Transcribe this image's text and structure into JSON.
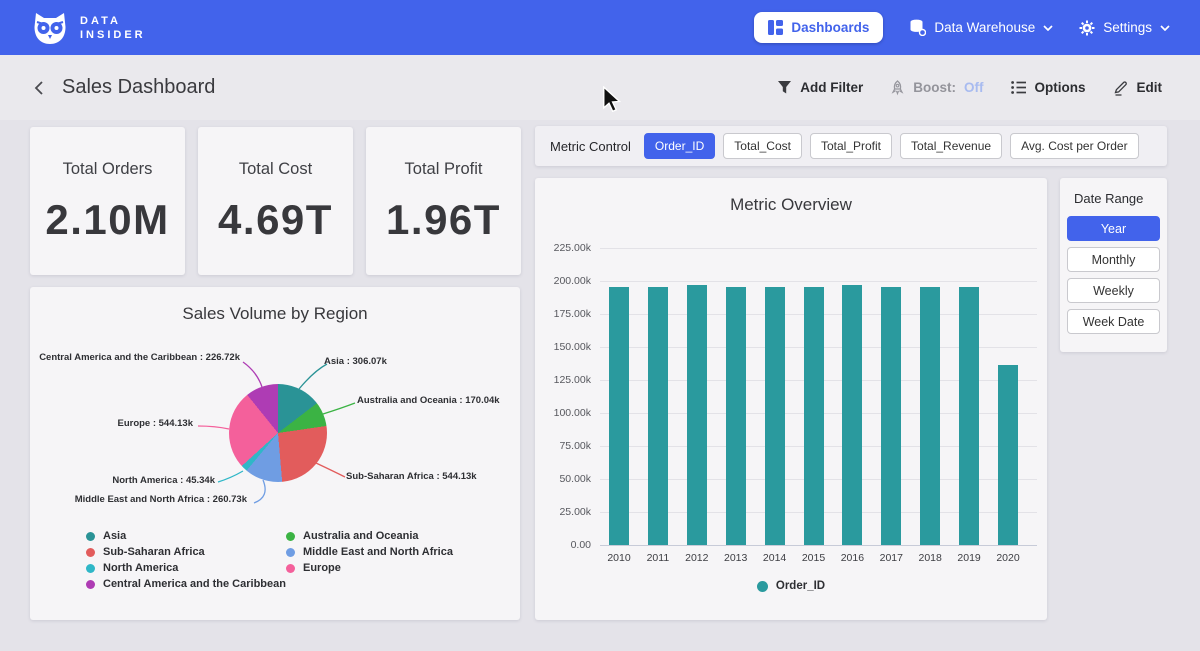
{
  "brand": {
    "line1": "DATA",
    "line2": "INSIDER"
  },
  "nav": {
    "dashboards": "Dashboards",
    "data_warehouse": "Data Warehouse",
    "settings": "Settings"
  },
  "header": {
    "title": "Sales Dashboard",
    "add_filter": "Add Filter",
    "boost_label": "Boost:",
    "boost_value": "Off",
    "options": "Options",
    "edit": "Edit"
  },
  "kpis": [
    {
      "label": "Total Orders",
      "value": "2.10M"
    },
    {
      "label": "Total Cost",
      "value": "4.69T"
    },
    {
      "label": "Total Profit",
      "value": "1.96T"
    }
  ],
  "metric_control": {
    "label": "Metric Control",
    "options": [
      {
        "label": "Order_ID",
        "selected": true
      },
      {
        "label": "Total_Cost",
        "selected": false
      },
      {
        "label": "Total_Profit",
        "selected": false
      },
      {
        "label": "Total_Revenue",
        "selected": false
      },
      {
        "label": "Avg. Cost per Order",
        "selected": false
      }
    ]
  },
  "date_range": {
    "label": "Date Range",
    "options": [
      {
        "label": "Year",
        "selected": true
      },
      {
        "label": "Monthly",
        "selected": false
      },
      {
        "label": "Weekly",
        "selected": false
      },
      {
        "label": "Week Date",
        "selected": false
      }
    ]
  },
  "colors": {
    "nav_blue": "#4263eb",
    "selected_blue": "#4263eb",
    "boost_off_text": "#a8bbf0",
    "bar_teal": "#2a9a9e"
  },
  "chart_data": [
    {
      "type": "pie",
      "title": "Sales Volume by Region",
      "labels": [
        "Asia",
        "Australia and Oceania",
        "Sub-Saharan Africa",
        "Middle East and North Africa",
        "North America",
        "Europe",
        "Central America and the Caribbean"
      ],
      "values": [
        306070,
        170040,
        544130,
        260730,
        45340,
        544130,
        226720
      ],
      "value_labels": [
        "306.07k",
        "170.04k",
        "544.13k",
        "260.73k",
        "45.34k",
        "544.13k",
        "226.72k"
      ],
      "colors": [
        "#2a9396",
        "#3bb344",
        "#e25c5c",
        "#6f9de3",
        "#2fb7c7",
        "#f4609b",
        "#ae3cb4"
      ],
      "label_separator": " : ",
      "legend_position": "bottom"
    },
    {
      "type": "bar",
      "title": "Metric Overview",
      "categories": [
        "2010",
        "2011",
        "2012",
        "2013",
        "2014",
        "2015",
        "2016",
        "2017",
        "2018",
        "2019",
        "2020"
      ],
      "series": [
        {
          "name": "Order_ID",
          "values": [
            195600,
            195600,
            197000,
            195600,
            195300,
            195800,
            197000,
            195600,
            195300,
            195800,
            136600
          ]
        }
      ],
      "y_ticks": [
        "225.00k",
        "200.00k",
        "175.00k",
        "150.00k",
        "125.00k",
        "100.00k",
        "75.00k",
        "50.00k",
        "25.00k",
        "0.00"
      ],
      "ylim": [
        0,
        225000
      ],
      "grid": true,
      "bar_color": "#2a9a9e",
      "legend_position": "bottom"
    }
  ]
}
